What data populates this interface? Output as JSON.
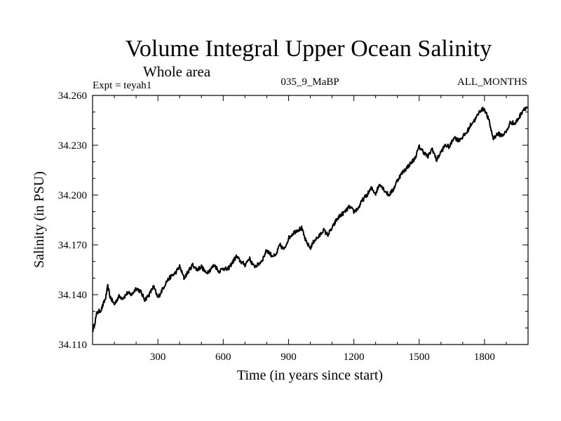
{
  "chart_data": {
    "type": "line",
    "title": "Volume Integral Upper Ocean Salinity",
    "subtitle": "Whole area",
    "left_label": "Expt = teyah1",
    "center_label": "035_9_MaBP",
    "right_label": "ALL_MONTHS",
    "xlabel": "Time (in years since start)",
    "ylabel": "Salinity (in PSU)",
    "xlim": [
      0,
      2000
    ],
    "ylim": [
      34.11,
      34.26
    ],
    "x_ticks": [
      300,
      600,
      900,
      1200,
      1500,
      1800
    ],
    "x_tick_labels": [
      "300",
      "600",
      "900",
      "1200",
      "1500",
      "1800"
    ],
    "y_ticks": [
      34.11,
      34.14,
      34.17,
      34.2,
      34.23,
      34.26
    ],
    "y_tick_labels": [
      "34.110",
      "34.140",
      "34.170",
      "34.200",
      "34.230",
      "34.260"
    ],
    "grid": false,
    "series": [
      {
        "name": "Salinity",
        "x": [
          0,
          10,
          20,
          40,
          60,
          70,
          80,
          100,
          120,
          140,
          160,
          180,
          200,
          220,
          240,
          260,
          280,
          300,
          320,
          340,
          360,
          380,
          400,
          420,
          440,
          460,
          480,
          500,
          520,
          540,
          560,
          580,
          600,
          620,
          640,
          660,
          680,
          700,
          720,
          740,
          760,
          780,
          800,
          820,
          840,
          860,
          880,
          900,
          920,
          940,
          960,
          980,
          1000,
          1020,
          1040,
          1060,
          1080,
          1100,
          1120,
          1140,
          1160,
          1180,
          1200,
          1220,
          1240,
          1260,
          1280,
          1300,
          1320,
          1340,
          1360,
          1380,
          1400,
          1420,
          1440,
          1460,
          1480,
          1500,
          1520,
          1540,
          1560,
          1580,
          1600,
          1620,
          1640,
          1660,
          1680,
          1700,
          1720,
          1740,
          1760,
          1780,
          1800,
          1820,
          1840,
          1860,
          1880,
          1900,
          1920,
          1940,
          1960,
          1980,
          2000
        ],
        "values": [
          34.118,
          34.123,
          34.129,
          34.131,
          34.138,
          34.145,
          34.139,
          34.134,
          34.139,
          34.138,
          34.141,
          34.14,
          34.144,
          34.142,
          34.137,
          34.14,
          34.145,
          34.138,
          34.143,
          34.148,
          34.151,
          34.153,
          34.157,
          34.15,
          34.154,
          34.158,
          34.155,
          34.157,
          34.153,
          34.155,
          34.158,
          34.154,
          34.156,
          34.155,
          34.159,
          34.163,
          34.16,
          34.158,
          34.162,
          34.157,
          34.158,
          34.161,
          34.167,
          34.164,
          34.163,
          34.17,
          34.167,
          34.174,
          34.177,
          34.179,
          34.18,
          34.172,
          34.168,
          34.173,
          34.175,
          34.179,
          34.176,
          34.18,
          34.185,
          34.188,
          34.19,
          34.193,
          34.19,
          34.192,
          34.197,
          34.2,
          34.204,
          34.201,
          34.207,
          34.203,
          34.2,
          34.203,
          34.209,
          34.213,
          34.216,
          34.219,
          34.222,
          34.229,
          34.226,
          34.223,
          34.228,
          34.221,
          34.226,
          34.23,
          34.229,
          34.235,
          34.233,
          34.235,
          34.238,
          34.243,
          34.246,
          34.251,
          34.252,
          34.245,
          34.234,
          34.237,
          34.236,
          34.238,
          34.244,
          34.243,
          34.247,
          34.252,
          34.253
        ]
      }
    ]
  }
}
